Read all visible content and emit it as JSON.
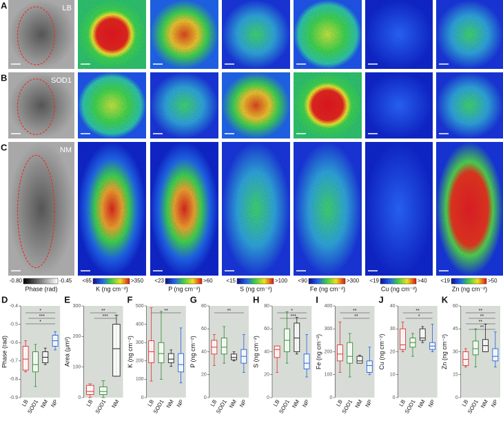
{
  "figure": {
    "rows": [
      {
        "label": "A",
        "sample": "LB"
      },
      {
        "label": "B",
        "sample": "SOD1"
      },
      {
        "label": "C",
        "sample": "NM"
      }
    ],
    "colorbars": [
      {
        "low": "-0.80",
        "high": "-0.45",
        "label": "Phase (rad)"
      },
      {
        "low": "<65",
        "high": ">350",
        "label": "K (ng cm⁻²)"
      },
      {
        "low": "<23",
        "high": ">60",
        "label": "P (ng cm⁻²)"
      },
      {
        "low": "<15",
        "high": ">100",
        "label": "S (ng cm⁻²)"
      },
      {
        "low": "<90",
        "high": ">300",
        "label": "Fe (ng cm⁻²)"
      },
      {
        "low": "<19",
        "high": ">40",
        "label": "Cu (ng cm⁻²)"
      },
      {
        "low": "<19",
        "high": ">50",
        "label": "Zn (ng cm⁻²)"
      }
    ]
  },
  "chart_data": [
    {
      "type": "box",
      "panel": "D",
      "ylabel": "Phase (rad)",
      "categories": [
        "LB",
        "SOD1",
        "NM",
        "NP"
      ],
      "colors": [
        "#e03030",
        "#2e8b2e",
        "#222222",
        "#2060e0"
      ],
      "low": [
        -0.76,
        -0.84,
        -0.72,
        -0.64
      ],
      "q1": [
        -0.75,
        -0.76,
        -0.71,
        -0.62
      ],
      "median": [
        -0.69,
        -0.72,
        -0.68,
        -0.59
      ],
      "q3": [
        -0.62,
        -0.65,
        -0.65,
        -0.56
      ],
      "high": [
        -0.59,
        -0.61,
        -0.63,
        -0.54
      ],
      "ylim": [
        -0.9,
        -0.4
      ],
      "yticks": [
        -0.9,
        -0.8,
        -0.7,
        -0.6,
        -0.5,
        -0.4
      ],
      "annotations": [
        "*",
        "***",
        "*"
      ]
    },
    {
      "type": "box",
      "panel": "E",
      "ylabel": "Area (μm²)",
      "categories": [
        "LB",
        "SOD1",
        "NM"
      ],
      "colors": [
        "#e03030",
        "#2e8b2e",
        "#222222"
      ],
      "low": [
        0,
        0,
        70
      ],
      "q1": [
        10,
        10,
        70
      ],
      "median": [
        20,
        20,
        160
      ],
      "q3": [
        40,
        35,
        240
      ],
      "high": [
        45,
        55,
        270
      ],
      "ylim": [
        0,
        300
      ],
      "yticks": [
        0,
        100,
        200,
        300
      ],
      "annotations": [
        "**",
        "***"
      ]
    },
    {
      "type": "box",
      "panel": "F",
      "ylabel": "K (ng cm⁻²)",
      "categories": [
        "LB",
        "SOD1",
        "NM",
        "NP"
      ],
      "colors": [
        "#e03030",
        "#2e8b2e",
        "#222222",
        "#2060e0"
      ],
      "low": [
        90,
        100,
        170,
        80
      ],
      "q1": [
        190,
        190,
        190,
        140
      ],
      "median": [
        250,
        240,
        210,
        180
      ],
      "q3": [
        310,
        300,
        240,
        240
      ],
      "high": [
        490,
        470,
        260,
        380
      ],
      "ylim": [
        0,
        500
      ],
      "yticks": [
        0,
        100,
        200,
        300,
        400,
        500
      ],
      "annotations": [
        "**"
      ]
    },
    {
      "type": "box",
      "panel": "G",
      "ylabel": "P (ng cm⁻²)",
      "categories": [
        "LB",
        "SOD1",
        "NM",
        "NP"
      ],
      "colors": [
        "#e03030",
        "#2e8b2e",
        "#222222",
        "#2060e0"
      ],
      "low": [
        28,
        30,
        32,
        22
      ],
      "q1": [
        38,
        38,
        33,
        30
      ],
      "median": [
        44,
        44,
        35,
        36
      ],
      "q3": [
        50,
        52,
        38,
        42
      ],
      "high": [
        55,
        62,
        40,
        55
      ],
      "ylim": [
        0,
        80
      ],
      "yticks": [
        0,
        20,
        40,
        60,
        80
      ],
      "annotations": [
        "**"
      ]
    },
    {
      "type": "box",
      "panel": "H",
      "ylabel": "S (ng cm⁻²)",
      "categories": [
        "LB",
        "SOD1",
        "NM",
        "NP"
      ],
      "colors": [
        "#e03030",
        "#2e8b2e",
        "#222222",
        "#2060e0"
      ],
      "low": [
        22,
        30,
        38,
        18
      ],
      "q1": [
        35,
        40,
        40,
        25
      ],
      "median": [
        42,
        50,
        52,
        30
      ],
      "q3": [
        45,
        60,
        65,
        38
      ],
      "high": [
        45,
        75,
        70,
        55
      ],
      "ylim": [
        0,
        80
      ],
      "yticks": [
        0,
        20,
        40,
        60,
        80
      ],
      "annotations": [
        "*",
        "***"
      ]
    },
    {
      "type": "box",
      "panel": "I",
      "ylabel": "Fe (ng cm⁻²)",
      "categories": [
        "LB",
        "SOD1",
        "NM",
        "NP"
      ],
      "colors": [
        "#e03030",
        "#2e8b2e",
        "#222222",
        "#2060e0"
      ],
      "low": [
        110,
        90,
        150,
        100
      ],
      "q1": [
        160,
        150,
        150,
        110
      ],
      "median": [
        190,
        180,
        160,
        140
      ],
      "q3": [
        230,
        240,
        180,
        160
      ],
      "high": [
        330,
        280,
        185,
        220
      ],
      "ylim": [
        0,
        400
      ],
      "yticks": [
        0,
        100,
        200,
        300,
        400
      ],
      "annotations": [
        "**",
        "**"
      ]
    },
    {
      "type": "box",
      "panel": "J",
      "ylabel": "Cu (ng cm⁻²)",
      "categories": [
        "LB",
        "SOD1",
        "NM",
        "NP"
      ],
      "colors": [
        "#e03030",
        "#2e8b2e",
        "#222222",
        "#2060e0"
      ],
      "low": [
        20,
        18,
        24,
        20
      ],
      "q1": [
        21,
        22,
        25,
        21
      ],
      "median": [
        23,
        24,
        26,
        22.5
      ],
      "q3": [
        30,
        26,
        30,
        24
      ],
      "high": [
        33,
        28,
        31,
        32
      ],
      "ylim": [
        0,
        40
      ],
      "yticks": [
        0,
        10,
        20,
        30,
        40
      ],
      "annotations": [
        "**",
        "*"
      ]
    },
    {
      "type": "box",
      "panel": "K",
      "ylabel": "Zn (ng cm⁻²)",
      "categories": [
        "LB",
        "SOD1",
        "NM",
        "NP"
      ],
      "colors": [
        "#e03030",
        "#2e8b2e",
        "#222222",
        "#2060e0"
      ],
      "low": [
        20,
        20,
        30,
        20
      ],
      "q1": [
        21,
        28,
        30,
        24
      ],
      "median": [
        25,
        32,
        34,
        27
      ],
      "q3": [
        30,
        37,
        38,
        32
      ],
      "high": [
        32,
        45,
        48,
        43
      ],
      "ylim": [
        0,
        60
      ],
      "yticks": [
        0,
        15,
        30,
        45,
        60
      ],
      "annotations": [
        "**",
        "**",
        "**",
        "**"
      ]
    }
  ]
}
